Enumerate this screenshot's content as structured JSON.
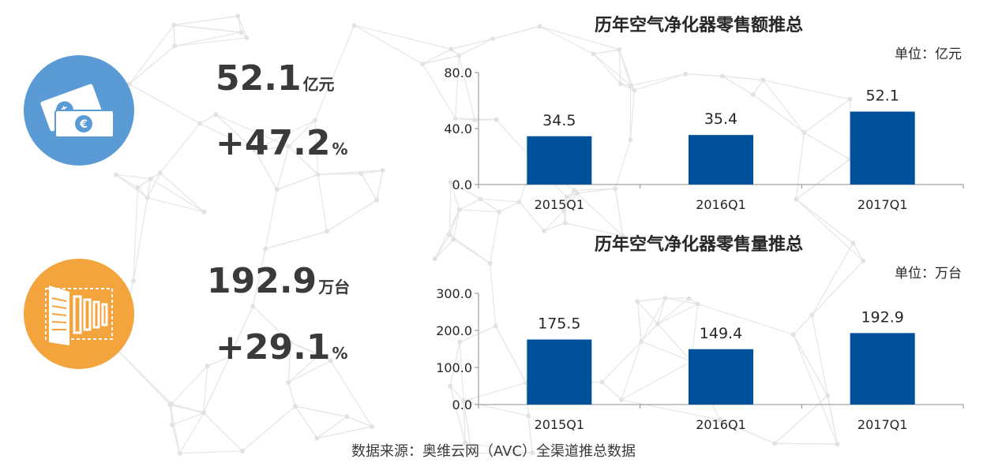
{
  "kpis": {
    "revenue": {
      "value": "52.1",
      "unit": "亿元",
      "growth": "+47.2",
      "growth_unit": "%"
    },
    "units": {
      "value": "192.9",
      "unit": "万台",
      "growth": "+29.1",
      "growth_unit": "%"
    }
  },
  "icons": {
    "revenue": "money-icon",
    "units": "building-icon"
  },
  "colors": {
    "bar": "#00519c",
    "money_circle": "#5b9bd5",
    "building_circle": "#f4a43c"
  },
  "chart_data": [
    {
      "type": "bar",
      "title": "历年空气净化器零售额推总",
      "unit_label": "单位：亿元",
      "categories": [
        "2015Q1",
        "2016Q1",
        "2017Q1"
      ],
      "values": [
        34.5,
        35.4,
        52.1
      ],
      "value_labels": [
        "34.5",
        "35.4",
        "52.1"
      ],
      "yticks": [
        "0.0",
        "40.0",
        "80.0"
      ],
      "ylim": [
        0,
        80
      ],
      "xlabel": "",
      "ylabel": "",
      "grid": false
    },
    {
      "type": "bar",
      "title": "历年空气净化器零售量推总",
      "unit_label": "单位：万台",
      "categories": [
        "2015Q1",
        "2016Q1",
        "2017Q1"
      ],
      "values": [
        175.5,
        149.4,
        192.9
      ],
      "value_labels": [
        "175.5",
        "149.4",
        "192.9"
      ],
      "yticks": [
        "0.0",
        "100.0",
        "200.0",
        "300.0"
      ],
      "ylim": [
        0,
        300
      ],
      "xlabel": "",
      "ylabel": "",
      "grid": false
    }
  ],
  "source": "数据来源：奥维云网（AVC）全渠道推总数据"
}
